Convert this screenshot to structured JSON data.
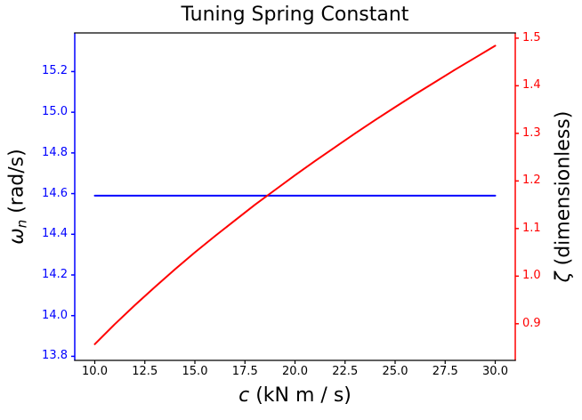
{
  "colors": {
    "left_axis": "#0000ff",
    "right_axis": "#ff0000",
    "frame": "#000000",
    "background": "#ffffff"
  },
  "labels": {
    "title": "Tuning Spring Constant",
    "xlabel_symbol": "c",
    "xlabel_units": " (kN m / s)",
    "ylabel_left_symbol": "ω",
    "ylabel_left_sub": "n",
    "ylabel_left_units": " (rad/s)",
    "ylabel_right_symbol": "ζ",
    "ylabel_right_units": " (dimensionless)"
  },
  "chart_data": {
    "type": "line",
    "title": "Tuning Spring Constant",
    "xlabel": "c (kN m / s)",
    "ylabel_left": "ω_n (rad/s)",
    "ylabel_right": "ζ (dimensionless)",
    "grid": false,
    "legend": null,
    "xlim": [
      9,
      31
    ],
    "ylim_left": [
      13.78,
      15.39
    ],
    "ylim_right": [
      0.823,
      1.511
    ],
    "xticks": [
      10.0,
      12.5,
      15.0,
      17.5,
      20.0,
      22.5,
      25.0,
      27.5,
      30.0
    ],
    "xtick_labels": [
      "10.0",
      "12.5",
      "15.0",
      "17.5",
      "20.0",
      "22.5",
      "25.0",
      "27.5",
      "30.0"
    ],
    "yticks_left": [
      13.8,
      14.0,
      14.2,
      14.4,
      14.6,
      14.8,
      15.0,
      15.2
    ],
    "ytick_labels_left": [
      "13.8",
      "14.0",
      "14.2",
      "14.4",
      "14.6",
      "14.8",
      "15.0",
      "15.2"
    ],
    "yticks_right": [
      0.9,
      1.0,
      1.1,
      1.2,
      1.3,
      1.4,
      1.5
    ],
    "ytick_labels_right": [
      "0.9",
      "1.0",
      "1.1",
      "1.2",
      "1.3",
      "1.4",
      "1.5"
    ],
    "series": [
      {
        "name": "omega_n",
        "axis": "left",
        "color": "#0000ff",
        "x": [
          10,
          11,
          12,
          13,
          14,
          15,
          16,
          17,
          18,
          19,
          20,
          21,
          22,
          23,
          24,
          25,
          26,
          27,
          28,
          29,
          30
        ],
        "y": [
          14.59,
          14.59,
          14.59,
          14.59,
          14.59,
          14.59,
          14.59,
          14.59,
          14.59,
          14.59,
          14.59,
          14.59,
          14.59,
          14.59,
          14.59,
          14.59,
          14.59,
          14.59,
          14.59,
          14.59,
          14.59
        ]
      },
      {
        "name": "zeta",
        "axis": "right",
        "color": "#ff0000",
        "x": [
          10,
          11,
          12,
          13,
          14,
          15,
          16,
          17,
          18,
          19,
          20,
          21,
          22,
          23,
          24,
          25,
          26,
          27,
          28,
          29,
          30
        ],
        "y": [
          0.857,
          0.899,
          0.939,
          0.977,
          1.014,
          1.05,
          1.084,
          1.117,
          1.15,
          1.181,
          1.212,
          1.242,
          1.271,
          1.3,
          1.328,
          1.355,
          1.382,
          1.408,
          1.434,
          1.459,
          1.484
        ]
      }
    ]
  }
}
